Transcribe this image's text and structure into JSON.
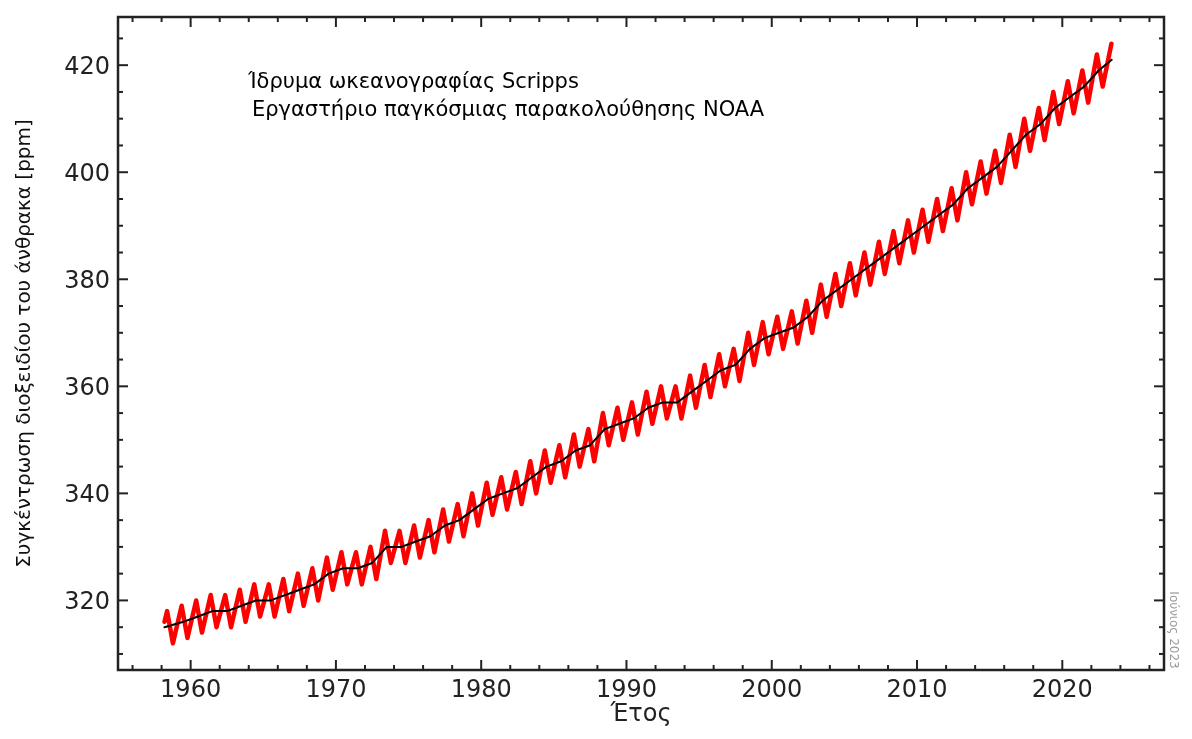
{
  "chart_data": {
    "type": "line",
    "xlabel": "Έτος",
    "ylabel": "Συγκέντρωση διοξειδίου του άνθρακα [ppm]",
    "annotations": [
      "Ίδρυμα ωκεανογραφίας Scripps",
      "Εργαστήριο παγκόσμιας παρακολούθησης NOAA",
      "Ιούνιος 2023"
    ],
    "xlim": [
      1955,
      2027
    ],
    "ylim": [
      307,
      429
    ],
    "xticks": [
      {
        "value": 1956,
        "label": null
      },
      {
        "value": 1958,
        "label": null
      },
      1960,
      {
        "value": 1962,
        "label": null
      },
      {
        "value": 1964,
        "label": null
      },
      {
        "value": 1966,
        "label": null
      },
      {
        "value": 1968,
        "label": null
      },
      1970,
      {
        "value": 1972,
        "label": null
      },
      {
        "value": 1974,
        "label": null
      },
      {
        "value": 1976,
        "label": null
      },
      {
        "value": 1978,
        "label": null
      },
      1980,
      {
        "value": 1982,
        "label": null
      },
      {
        "value": 1984,
        "label": null
      },
      {
        "value": 1986,
        "label": null
      },
      {
        "value": 1988,
        "label": null
      },
      1990,
      {
        "value": 1992,
        "label": null
      },
      {
        "value": 1994,
        "label": null
      },
      {
        "value": 1996,
        "label": null
      },
      {
        "value": 1998,
        "label": null
      },
      2000,
      {
        "value": 2002,
        "label": null
      },
      {
        "value": 2004,
        "label": null
      },
      {
        "value": 2006,
        "label": null
      },
      {
        "value": 2008,
        "label": null
      },
      2010,
      {
        "value": 2012,
        "label": null
      },
      {
        "value": 2014,
        "label": null
      },
      {
        "value": 2016,
        "label": null
      },
      {
        "value": 2018,
        "label": null
      },
      2020,
      {
        "value": 2022,
        "label": null
      },
      {
        "value": 2024,
        "label": null
      },
      {
        "value": 2026,
        "label": null
      }
    ],
    "yticks": [
      {
        "value": 310,
        "label": null
      },
      {
        "value": 315,
        "label": null
      },
      320,
      {
        "value": 325,
        "label": null
      },
      {
        "value": 330,
        "label": null
      },
      {
        "value": 335,
        "label": null
      },
      340,
      {
        "value": 345,
        "label": null
      },
      {
        "value": 350,
        "label": null
      },
      {
        "value": 355,
        "label": null
      },
      360,
      {
        "value": 365,
        "label": null
      },
      {
        "value": 370,
        "label": null
      },
      {
        "value": 375,
        "label": null
      },
      380,
      {
        "value": 385,
        "label": null
      },
      {
        "value": 390,
        "label": null
      },
      {
        "value": 395,
        "label": null
      },
      400,
      {
        "value": 405,
        "label": null
      },
      {
        "value": 410,
        "label": null
      },
      {
        "value": 415,
        "label": null
      },
      420,
      {
        "value": 425,
        "label": null
      }
    ],
    "grid": false,
    "marker": "none",
    "line_style": "solid",
    "series": [
      {
        "color": "#ff0000",
        "x": [
          1958.2,
          1958.38,
          1958.78,
          1959.38,
          1959.78,
          1960.38,
          1960.78,
          1961.38,
          1961.78,
          1962.38,
          1962.78,
          1963.38,
          1963.78,
          1964.38,
          1964.78,
          1965.38,
          1965.78,
          1966.38,
          1966.78,
          1967.38,
          1967.78,
          1968.38,
          1968.78,
          1969.38,
          1969.78,
          1970.38,
          1970.78,
          1971.38,
          1971.78,
          1972.38,
          1972.78,
          1973.38,
          1973.78,
          1974.38,
          1974.78,
          1975.38,
          1975.78,
          1976.38,
          1976.78,
          1977.38,
          1977.78,
          1978.38,
          1978.78,
          1979.38,
          1979.78,
          1980.38,
          1980.78,
          1981.38,
          1981.78,
          1982.38,
          1982.78,
          1983.38,
          1983.78,
          1984.38,
          1984.78,
          1985.38,
          1985.78,
          1986.38,
          1986.78,
          1987.38,
          1987.78,
          1988.38,
          1988.78,
          1989.38,
          1989.78,
          1990.38,
          1990.78,
          1991.38,
          1991.78,
          1992.38,
          1992.78,
          1993.38,
          1993.78,
          1994.38,
          1994.78,
          1995.38,
          1995.78,
          1996.38,
          1996.78,
          1997.38,
          1997.78,
          1998.38,
          1998.78,
          1999.38,
          1999.78,
          2000.38,
          2000.78,
          2001.38,
          2001.78,
          2002.38,
          2002.78,
          2003.38,
          2003.78,
          2004.38,
          2004.78,
          2005.38,
          2005.78,
          2006.38,
          2006.78,
          2007.38,
          2007.78,
          2008.38,
          2008.78,
          2009.38,
          2009.78,
          2010.38,
          2010.78,
          2011.38,
          2011.78,
          2012.38,
          2012.78,
          2013.38,
          2013.78,
          2014.38,
          2014.78,
          2015.38,
          2015.78,
          2016.38,
          2016.78,
          2017.38,
          2017.78,
          2018.38,
          2018.78,
          2019.38,
          2019.78,
          2020.38,
          2020.78,
          2021.38,
          2021.78,
          2022.38,
          2022.78,
          2023.38
        ],
        "values": [
          316,
          318,
          312,
          319,
          313,
          320,
          314,
          321,
          315,
          321,
          315,
          322,
          316,
          323,
          317,
          323,
          317,
          324,
          318,
          325,
          319,
          326,
          320,
          328,
          322,
          329,
          323,
          329,
          323,
          330,
          324,
          333,
          327,
          333,
          327,
          334,
          328,
          335,
          329,
          337,
          331,
          338,
          332,
          340,
          334,
          342,
          336,
          343,
          337,
          344,
          338,
          346,
          340,
          348,
          342,
          349,
          343,
          351,
          345,
          352,
          346,
          355,
          349,
          356,
          350,
          357,
          351,
          359,
          353,
          360,
          354,
          360,
          354,
          362,
          356,
          364,
          358,
          366,
          360,
          367,
          361,
          370,
          364,
          372,
          366,
          373,
          367,
          374,
          368,
          376,
          370,
          379,
          373,
          381,
          375,
          383,
          377,
          385,
          379,
          387,
          381,
          389,
          383,
          391,
          385,
          393,
          387,
          395,
          389,
          397,
          391,
          400,
          394,
          402,
          396,
          404,
          398,
          407,
          401,
          410,
          404,
          412,
          406,
          415,
          409,
          417,
          411,
          419,
          413,
          422,
          416,
          424
        ]
      },
      {
        "color": "#000000",
        "x": [
          1958.2,
          1959.5,
          1960.5,
          1961.5,
          1962.5,
          1963.5,
          1964.5,
          1965.5,
          1966.5,
          1967.5,
          1968.5,
          1969.5,
          1970.5,
          1971.5,
          1972.5,
          1973.5,
          1974.5,
          1975.5,
          1976.5,
          1977.5,
          1978.5,
          1979.5,
          1980.5,
          1981.5,
          1982.5,
          1983.5,
          1984.5,
          1985.5,
          1986.5,
          1987.5,
          1988.5,
          1989.5,
          1990.5,
          1991.5,
          1992.5,
          1993.5,
          1994.5,
          1995.5,
          1996.5,
          1997.5,
          1998.5,
          1999.5,
          2000.5,
          2001.5,
          2002.5,
          2003.5,
          2004.5,
          2005.5,
          2006.5,
          2007.5,
          2008.5,
          2009.5,
          2010.5,
          2011.5,
          2012.5,
          2013.5,
          2014.5,
          2015.5,
          2016.5,
          2017.5,
          2018.5,
          2019.5,
          2020.5,
          2021.5,
          2022.5,
          2023.4
        ],
        "values": [
          315,
          316,
          317,
          318,
          318,
          319,
          320,
          320,
          321,
          322,
          323,
          325,
          326,
          326,
          327,
          330,
          330,
          331,
          332,
          334,
          335,
          337,
          339,
          340,
          341,
          343,
          345,
          346,
          348,
          349,
          352,
          353,
          354,
          356,
          357,
          357,
          359,
          361,
          363,
          364,
          367,
          369,
          370,
          371,
          373,
          376,
          378,
          380,
          382,
          384,
          386,
          388,
          390,
          392,
          394,
          397,
          399,
          401,
          404,
          407,
          409,
          412,
          414,
          416,
          419,
          421
        ]
      }
    ]
  }
}
